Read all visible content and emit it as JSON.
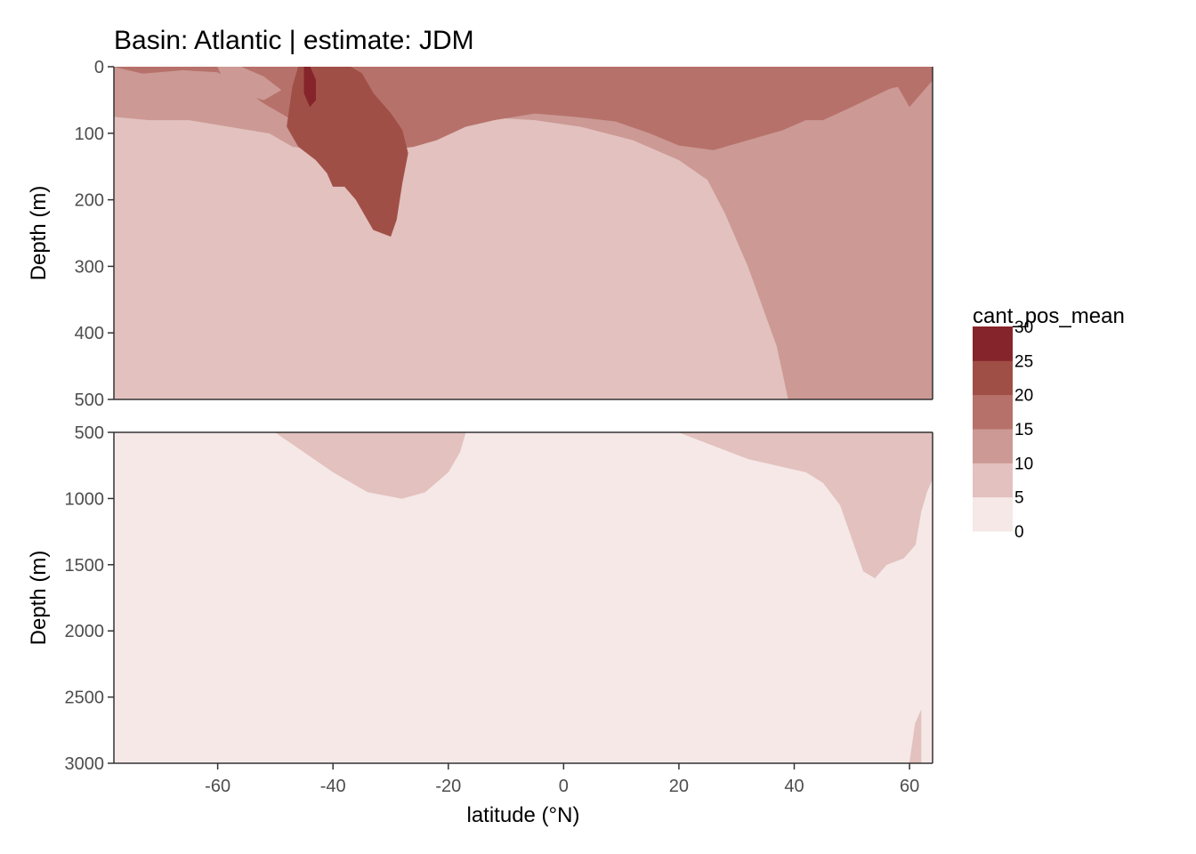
{
  "chart_data": {
    "type": "contour",
    "title": "Basin: Atlantic | estimate: JDM",
    "xlabel": "latitude (°N)",
    "ylabel": "Depth (m)",
    "xlim": [
      -78,
      64
    ],
    "x_ticks": [
      -60,
      -40,
      -20,
      0,
      20,
      40,
      60
    ],
    "x_tick_labels": [
      "-60",
      "-40",
      "-20",
      "0",
      "20",
      "40",
      "60"
    ],
    "panels": [
      {
        "name": "upper",
        "ylim": [
          0,
          500
        ],
        "y_ticks": [
          0,
          100,
          200,
          300,
          400,
          500
        ],
        "y_tick_labels": [
          "0",
          "100",
          "200",
          "300",
          "400",
          "500"
        ]
      },
      {
        "name": "lower",
        "ylim": [
          500,
          3000
        ],
        "y_ticks": [
          500,
          1000,
          1500,
          2000,
          2500,
          3000
        ],
        "y_tick_labels": [
          "500",
          "1000",
          "1500",
          "2000",
          "2500",
          "3000"
        ]
      }
    ],
    "legend": {
      "title": "cant_pos_mean",
      "position": "right",
      "breaks": [
        0,
        5,
        10,
        15,
        20,
        25,
        30
      ],
      "break_labels": [
        "0",
        "5",
        "10",
        "15",
        "20",
        "25",
        "30"
      ],
      "colors": [
        "#f5e8e7",
        "#e2c1be",
        "#cc9994",
        "#b6716a",
        "#a04f47",
        "#85242a"
      ]
    },
    "upper_bands": [
      {
        "level": 1,
        "points": [
          [
            -78,
            0
          ],
          [
            64,
            0
          ],
          [
            64,
            500
          ],
          [
            -78,
            500
          ]
        ]
      },
      {
        "level": 2,
        "points": [
          [
            -78,
            0
          ],
          [
            64,
            0
          ],
          [
            64,
            500
          ],
          [
            39,
            500
          ],
          [
            37,
            420
          ],
          [
            32,
            300
          ],
          [
            28,
            220
          ],
          [
            25,
            170
          ],
          [
            20,
            140
          ],
          [
            12,
            110
          ],
          [
            3,
            90
          ],
          [
            -5,
            80
          ],
          [
            -15,
            75
          ],
          [
            -25,
            80
          ],
          [
            -35,
            110
          ],
          [
            -42,
            125
          ],
          [
            -47,
            120
          ],
          [
            -51,
            100
          ],
          [
            -58,
            90
          ],
          [
            -65,
            80
          ],
          [
            -72,
            80
          ],
          [
            -78,
            75
          ]
        ]
      },
      {
        "level": 3,
        "points": [
          [
            -74,
            0
          ],
          [
            35,
            0
          ],
          [
            42,
            30
          ],
          [
            45,
            65
          ],
          [
            50,
            45
          ],
          [
            58,
            30
          ],
          [
            60,
            60
          ],
          [
            64,
            20
          ],
          [
            64,
            0
          ]
        ]
      },
      {
        "level": 3,
        "points": [
          [
            -73,
            10
          ],
          [
            -66,
            5
          ],
          [
            -60,
            8
          ],
          [
            -56,
            30
          ],
          [
            -52,
            55
          ],
          [
            -48,
            75
          ],
          [
            -44,
            92
          ],
          [
            -40,
            100
          ],
          [
            -36,
            118
          ],
          [
            -31,
            125
          ],
          [
            -26,
            120
          ],
          [
            -22,
            110
          ],
          [
            -17,
            90
          ],
          [
            -12,
            80
          ],
          [
            -5,
            70
          ],
          [
            2,
            75
          ],
          [
            9,
            82
          ],
          [
            15,
            100
          ],
          [
            20,
            118
          ],
          [
            26,
            125
          ],
          [
            32,
            110
          ],
          [
            38,
            95
          ],
          [
            42,
            80
          ],
          [
            45,
            80
          ],
          [
            50,
            60
          ],
          [
            56,
            35
          ],
          [
            60,
            20
          ],
          [
            64,
            0
          ],
          [
            -78,
            0
          ]
        ]
      },
      {
        "level": 4,
        "points": [
          [
            -46,
            0
          ],
          [
            -37,
            0
          ],
          [
            -35,
            10
          ],
          [
            -33,
            40
          ],
          [
            -30,
            70
          ],
          [
            -28,
            95
          ],
          [
            -27,
            130
          ],
          [
            -28,
            175
          ],
          [
            -29,
            230
          ],
          [
            -30,
            255
          ],
          [
            -33,
            245
          ],
          [
            -36,
            200
          ],
          [
            -38,
            180
          ],
          [
            -40,
            180
          ],
          [
            -41,
            160
          ],
          [
            -43,
            140
          ],
          [
            -46,
            120
          ],
          [
            -48,
            90
          ],
          [
            -47,
            30
          ]
        ]
      },
      {
        "level": 5,
        "points": [
          [
            -45,
            0
          ],
          [
            -44,
            0
          ],
          [
            -43,
            20
          ],
          [
            -43,
            50
          ],
          [
            -44,
            60
          ],
          [
            -45,
            40
          ]
        ]
      },
      {
        "level": 2,
        "points": [
          [
            -60,
            0
          ],
          [
            -56,
            0
          ],
          [
            -52,
            15
          ],
          [
            -49,
            35
          ],
          [
            -52,
            50
          ],
          [
            -56,
            40
          ],
          [
            -59,
            20
          ]
        ]
      }
    ],
    "lower_bands": [
      {
        "level": 0,
        "points": [
          [
            -78,
            500
          ],
          [
            64,
            500
          ],
          [
            64,
            3000
          ],
          [
            -78,
            3000
          ]
        ]
      },
      {
        "level": 1,
        "points": [
          [
            -50,
            500
          ],
          [
            -45,
            650
          ],
          [
            -40,
            800
          ],
          [
            -34,
            950
          ],
          [
            -28,
            1000
          ],
          [
            -24,
            950
          ],
          [
            -20,
            800
          ],
          [
            -18,
            650
          ],
          [
            -17,
            500
          ]
        ]
      },
      {
        "level": 1,
        "points": [
          [
            20,
            500
          ],
          [
            26,
            600
          ],
          [
            32,
            700
          ],
          [
            38,
            760
          ],
          [
            42,
            800
          ],
          [
            45,
            880
          ],
          [
            48,
            1050
          ],
          [
            50,
            1300
          ],
          [
            52,
            1550
          ],
          [
            54,
            1600
          ],
          [
            56,
            1500
          ],
          [
            59,
            1450
          ],
          [
            61,
            1350
          ],
          [
            62,
            1100
          ],
          [
            63,
            950
          ],
          [
            64,
            850
          ],
          [
            64,
            500
          ]
        ]
      },
      {
        "level": 1,
        "points": [
          [
            60,
            3000
          ],
          [
            61,
            2700
          ],
          [
            62,
            2600
          ],
          [
            62,
            3000
          ]
        ]
      }
    ]
  }
}
